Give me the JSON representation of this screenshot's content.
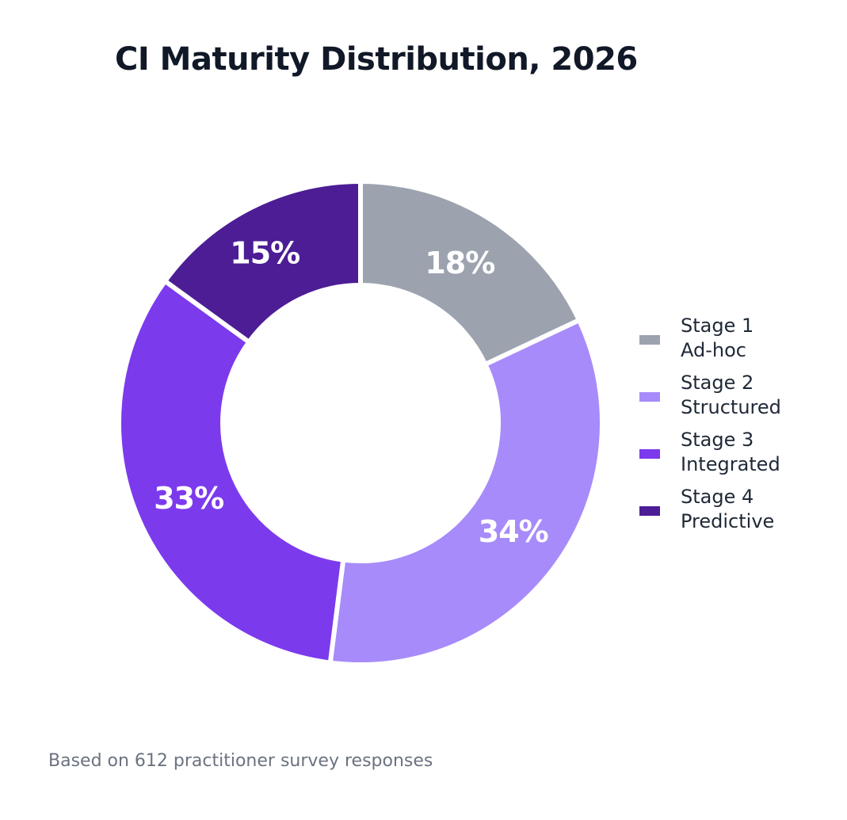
{
  "chart_data": {
    "type": "pie",
    "title": "CI Maturity Distribution, 2026",
    "hole": true,
    "start_angle": "top",
    "direction": "clockwise",
    "slices": [
      {
        "line1": "Stage 1",
        "line2": "Ad-hoc",
        "value": 18,
        "label": "18%",
        "color": "#9ca3af"
      },
      {
        "line1": "Stage 2",
        "line2": "Structured",
        "value": 34,
        "label": "34%",
        "color": "#a78bfa"
      },
      {
        "line1": "Stage 3",
        "line2": "Integrated",
        "value": 33,
        "label": "33%",
        "color": "#7c3aed"
      },
      {
        "line1": "Stage 4",
        "line2": "Predictive",
        "value": 15,
        "label": "15%",
        "color": "#4c1d95"
      }
    ],
    "legend_position": "right",
    "footnote": "Based on 612 practitioner survey responses"
  }
}
